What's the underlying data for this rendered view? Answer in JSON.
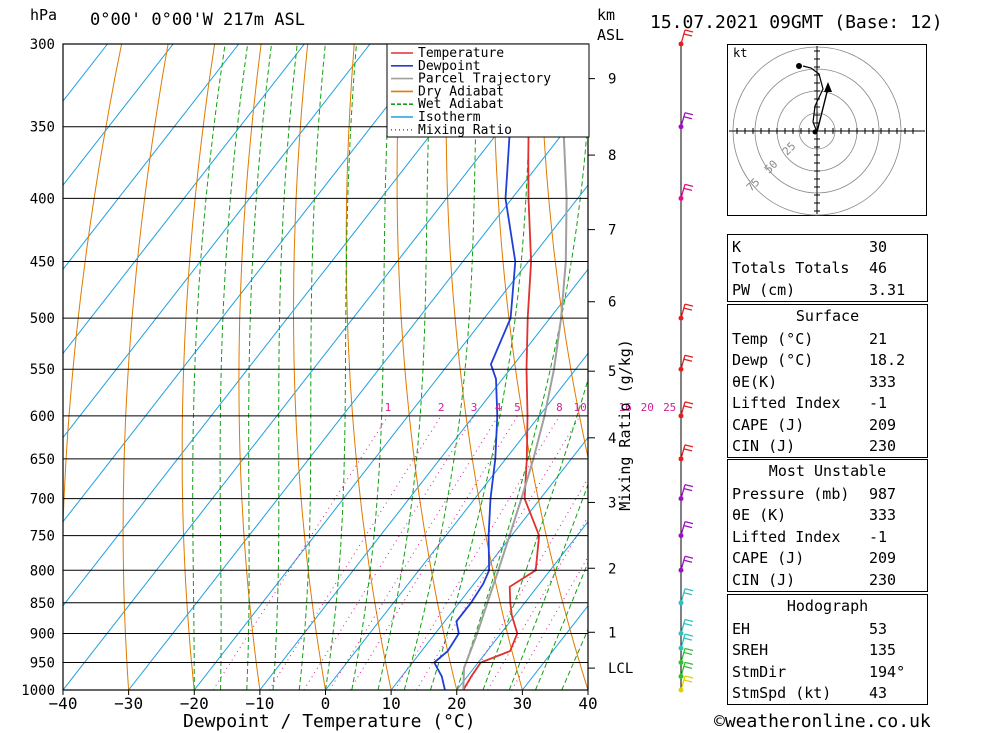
{
  "header": {
    "pressure_unit": "hPa",
    "location": "0°00' 0°00'W 217m ASL",
    "km_unit": "km",
    "asl_unit": "ASL",
    "datetime": "15.07.2021 09GMT (Base: 12)"
  },
  "footer": {
    "copyright": "©weatheronline.co.uk"
  },
  "chart_data": {
    "type": "skew-t",
    "xlabel": "Dewpoint / Temperature (°C)",
    "ylabel_left": "hPa",
    "ylabel_right": "Mixing Ratio (g/kg)",
    "pressure_levels": [
      300,
      350,
      400,
      450,
      500,
      550,
      600,
      650,
      700,
      750,
      800,
      850,
      900,
      950,
      1000
    ],
    "pressure_range": [
      300,
      1000
    ],
    "temperature_ticks": [
      -40,
      -30,
      -20,
      -10,
      0,
      10,
      20,
      30,
      40
    ],
    "temperature_range_at_1000hPa": [
      -40,
      40
    ],
    "km_ticks": [
      {
        "label": "9",
        "p": 320
      },
      {
        "label": "8",
        "p": 369
      },
      {
        "label": "7",
        "p": 424
      },
      {
        "label": "6",
        "p": 485
      },
      {
        "label": "5",
        "p": 552
      },
      {
        "label": "4",
        "p": 625
      },
      {
        "label": "3",
        "p": 705
      },
      {
        "label": "2",
        "p": 797
      },
      {
        "label": "1",
        "p": 898
      },
      {
        "label": "LCL",
        "p": 960
      }
    ],
    "mixing_ratio_labels": [
      "1",
      "2",
      "3",
      "4",
      "5",
      "8",
      "10",
      "16",
      "20",
      "25"
    ],
    "mixing_ratio_values": [
      1,
      2,
      3,
      4,
      5,
      8,
      10,
      16,
      20,
      25
    ],
    "legend": [
      "Temperature",
      "Dewpoint",
      "Parcel Trajectory",
      "Dry Adiabat",
      "Wet Adiabat",
      "Isotherm",
      "Mixing Ratio"
    ],
    "colors": {
      "temperature": "#e03030",
      "dewpoint": "#1f3fd8",
      "parcel": "#a0a0a0",
      "dry_adiabat": "#e07a00",
      "wet_adiabat": "#12a012",
      "isotherm": "#1fa0e0",
      "mixing_ratio": "#d0209a"
    },
    "series": [
      {
        "name": "Temperature",
        "points": [
          [
            1000,
            21
          ],
          [
            975,
            20.6
          ],
          [
            950,
            20.4
          ],
          [
            930,
            23.5
          ],
          [
            900,
            22.5
          ],
          [
            870,
            19.5
          ],
          [
            850,
            17.8
          ],
          [
            825,
            15.8
          ],
          [
            800,
            17.8
          ],
          [
            750,
            14.2
          ],
          [
            700,
            7.6
          ],
          [
            650,
            3.2
          ],
          [
            600,
            -1.8
          ],
          [
            550,
            -7.5
          ],
          [
            500,
            -13.4
          ],
          [
            450,
            -19.6
          ],
          [
            400,
            -27.5
          ],
          [
            370,
            -32.5
          ],
          [
            350,
            -36
          ],
          [
            335,
            -39
          ],
          [
            300,
            -45
          ]
        ]
      },
      {
        "name": "Dewpoint",
        "points": [
          [
            1000,
            18.2
          ],
          [
            975,
            16.1
          ],
          [
            950,
            13.3
          ],
          [
            930,
            14
          ],
          [
            900,
            13.6
          ],
          [
            880,
            11.8
          ],
          [
            850,
            11.8
          ],
          [
            820,
            11.4
          ],
          [
            800,
            10.7
          ],
          [
            750,
            6.5
          ],
          [
            700,
            2.4
          ],
          [
            650,
            -1.6
          ],
          [
            600,
            -6.4
          ],
          [
            560,
            -11
          ],
          [
            545,
            -13.5
          ],
          [
            500,
            -16
          ],
          [
            450,
            -22
          ],
          [
            400,
            -31
          ],
          [
            380,
            -34
          ],
          [
            355,
            -38
          ],
          [
            340,
            -47
          ],
          [
            320,
            -55
          ],
          [
            300,
            -65
          ]
        ]
      },
      {
        "name": "Parcel Trajectory",
        "points": [
          [
            1000,
            21
          ],
          [
            960,
            18.5
          ],
          [
            900,
            16.4
          ],
          [
            850,
            14.3
          ],
          [
            800,
            12.1
          ],
          [
            750,
            9.7
          ],
          [
            700,
            7.1
          ],
          [
            650,
            4.2
          ],
          [
            600,
            0.8
          ],
          [
            550,
            -3.3
          ],
          [
            500,
            -8.3
          ],
          [
            450,
            -14.3
          ],
          [
            400,
            -21.7
          ],
          [
            350,
            -30.7
          ],
          [
            300,
            -41.7
          ]
        ]
      }
    ],
    "wind_barbs_on_axis": [
      "1000",
      "975",
      "950",
      "925",
      "900",
      "850",
      "800",
      "750",
      "700",
      "650",
      "600",
      "550",
      "500",
      "400",
      "350",
      "300"
    ]
  },
  "hodograph": {
    "unit_label": "kt",
    "ring_labels": [
      "25",
      "50",
      "75"
    ]
  },
  "indices": [
    {
      "label": "K",
      "value": "30"
    },
    {
      "label": "Totals Totals",
      "value": "46"
    },
    {
      "label": "PW (cm)",
      "value": "3.31"
    }
  ],
  "surface": {
    "title": "Surface",
    "rows": [
      {
        "label": "Temp (°C)",
        "value": "21"
      },
      {
        "label": "Dewp (°C)",
        "value": "18.2"
      },
      {
        "label": "θE(K)",
        "value": "333"
      },
      {
        "label": "Lifted Index",
        "value": "-1"
      },
      {
        "label": "CAPE (J)",
        "value": "209"
      },
      {
        "label": "CIN (J)",
        "value": "230"
      }
    ]
  },
  "most_unstable": {
    "title": "Most Unstable",
    "rows": [
      {
        "label": "Pressure (mb)",
        "value": "987"
      },
      {
        "label": "θE (K)",
        "value": "333"
      },
      {
        "label": "Lifted Index",
        "value": "-1"
      },
      {
        "label": "CAPE (J)",
        "value": "209"
      },
      {
        "label": "CIN (J)",
        "value": "230"
      }
    ]
  },
  "hodograph_table": {
    "title": "Hodograph",
    "rows": [
      {
        "label": "EH",
        "value": "53"
      },
      {
        "label": "SREH",
        "value": "135"
      },
      {
        "label": "StmDir",
        "value": "194°"
      },
      {
        "label": "StmSpd (kt)",
        "value": "43"
      }
    ]
  }
}
